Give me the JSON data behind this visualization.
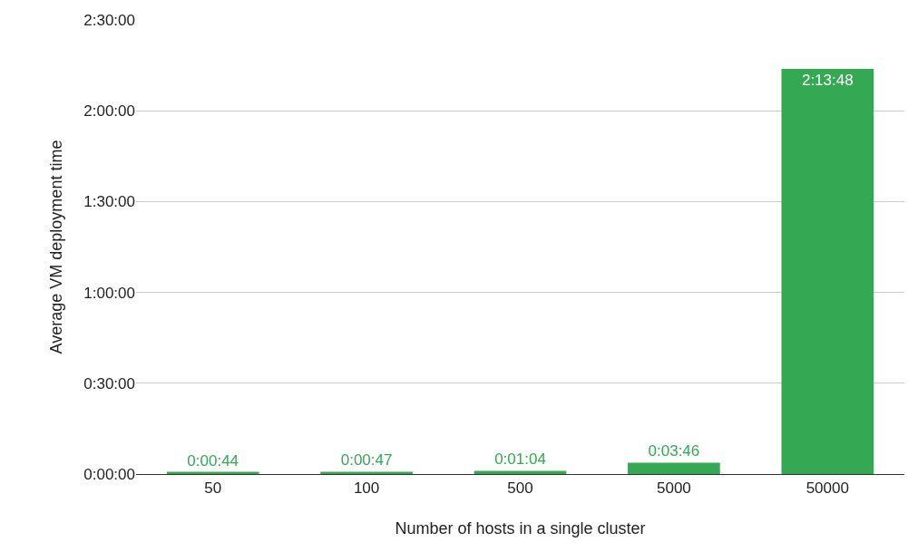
{
  "chart_data": {
    "type": "bar",
    "xlabel": "Number of hosts in a single cluster",
    "ylabel": "Average VM deployment time",
    "categories": [
      "50",
      "100",
      "500",
      "5000",
      "50000"
    ],
    "values": [
      44,
      47,
      64,
      226,
      8028
    ],
    "value_labels": [
      "0:00:44",
      "0:00:47",
      "0:01:04",
      "0:03:46",
      "2:13:48"
    ],
    "color": "#34a853",
    "ylim": [
      0,
      9000
    ],
    "yticks": [
      {
        "value": 0,
        "label": "0:00:00"
      },
      {
        "value": 1800,
        "label": "0:30:00"
      },
      {
        "value": 3600,
        "label": "1:00:00"
      },
      {
        "value": 5400,
        "label": "1:30:00"
      },
      {
        "value": 7200,
        "label": "2:00:00"
      },
      {
        "value": 9000,
        "label": "2:30:00"
      }
    ],
    "grid": "y"
  }
}
